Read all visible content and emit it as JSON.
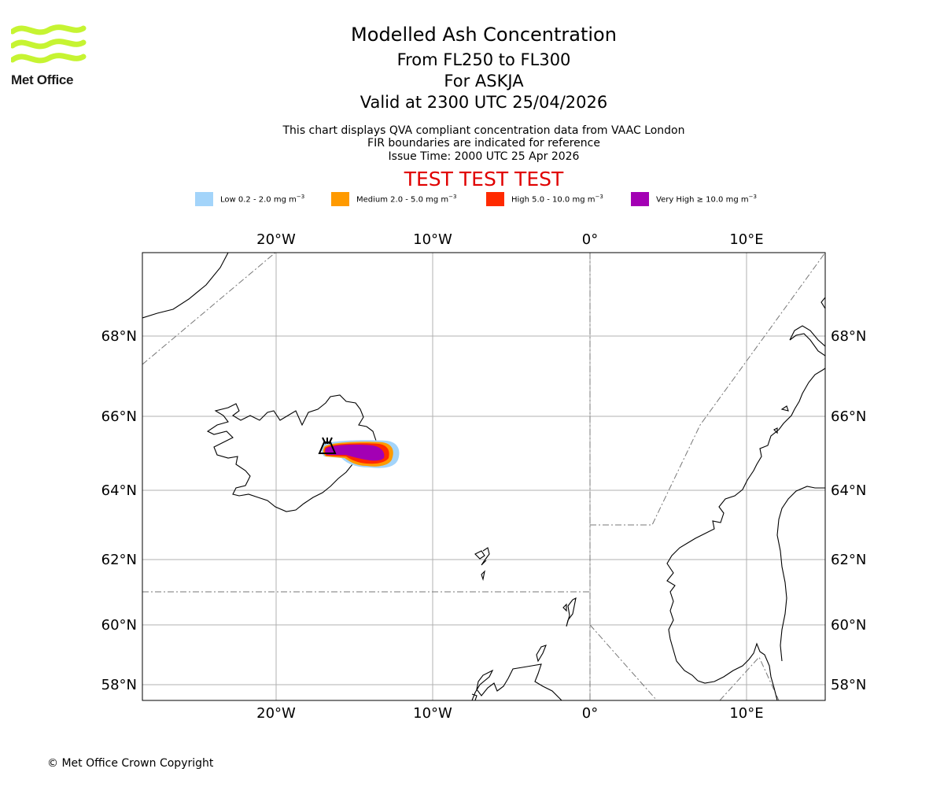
{
  "header": {
    "title": "Modelled Ash Concentration",
    "levels": "From FL250 to FL300",
    "volcano": "For ASKJA",
    "valid": "Valid at 2300 UTC 25/04/2026",
    "note1": "This chart displays QVA compliant concentration data from VAAC London",
    "note2": "FIR boundaries are indicated for reference",
    "note3": "Issue Time: 2000 UTC 25 Apr 2026",
    "test": "TEST TEST TEST"
  },
  "logo": {
    "text": "Met Office",
    "color": "#c6f432"
  },
  "legend": [
    {
      "label": "Low 0.2 - 2.0 mg m",
      "sup": "−3",
      "color": "#a3d4fa"
    },
    {
      "label": "Medium 2.0 - 5.0 mg m",
      "sup": "−3",
      "color": "#ff9a00"
    },
    {
      "label": "High 5.0 - 10.0 mg m",
      "sup": "−3",
      "color": "#ff2a00"
    },
    {
      "label": "Very High  ≥  10.0 mg m",
      "sup": "−3",
      "color": "#a300b4"
    }
  ],
  "map": {
    "lon_ticks": [
      "20°W",
      "10°W",
      "0°",
      "10°E"
    ],
    "lat_ticks": [
      "68°N",
      "66°N",
      "64°N",
      "62°N",
      "60°N",
      "58°N"
    ],
    "volcano_marker": "volcano-icon"
  },
  "footer": {
    "copyright": "© Met Office Crown Copyright"
  }
}
